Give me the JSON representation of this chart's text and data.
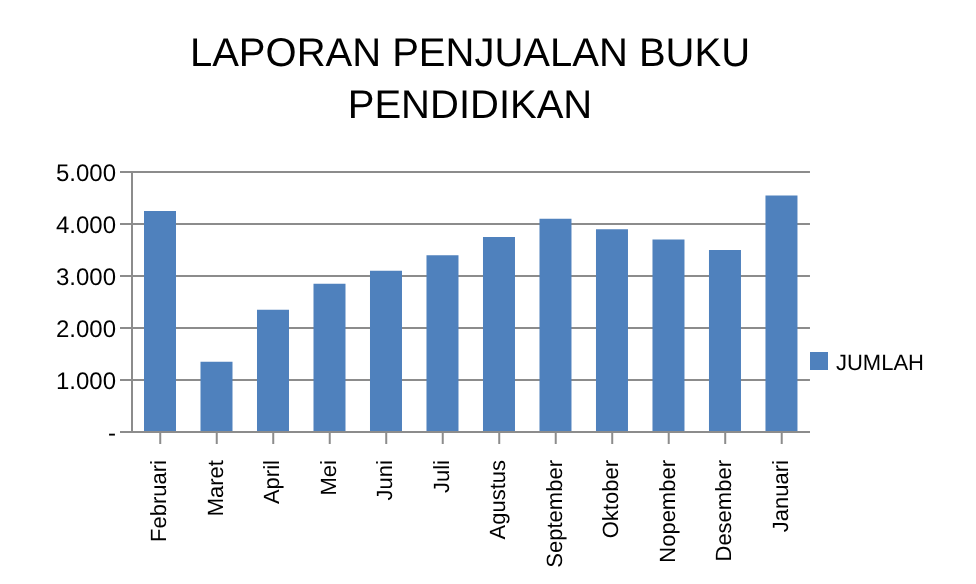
{
  "chart_data": {
    "type": "bar",
    "title": "LAPORAN PENJUALAN BUKU PENDIDIKAN",
    "categories": [
      "Februari",
      "Maret",
      "April",
      "Mei",
      "Juni",
      "Juli",
      "Agustus",
      "September",
      "Oktober",
      "Nopember",
      "Desember",
      "Januari"
    ],
    "series": [
      {
        "name": "JUMLAH",
        "color": "#4f81bd",
        "values": [
          4250,
          1350,
          2350,
          2850,
          3100,
          3400,
          3750,
          4100,
          3900,
          3700,
          3500,
          4550
        ]
      }
    ],
    "ylim": [
      0,
      5000
    ],
    "yticks": [
      {
        "value": 0,
        "label": "-"
      },
      {
        "value": 1000,
        "label": "1.000"
      },
      {
        "value": 2000,
        "label": "2.000"
      },
      {
        "value": 3000,
        "label": "3.000"
      },
      {
        "value": 4000,
        "label": "4.000"
      },
      {
        "value": 5000,
        "label": "5.000"
      }
    ],
    "grid": "y",
    "legend": "right"
  }
}
